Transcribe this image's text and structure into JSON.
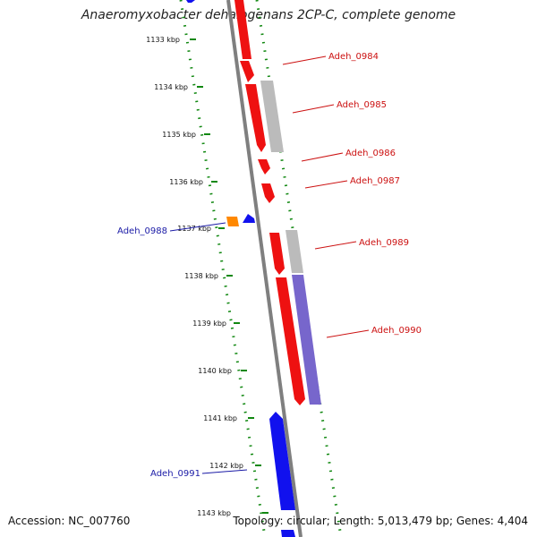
{
  "title": "Anaeromyxobacter dehalogenans 2CP-C, complete genome",
  "footer": {
    "accession": "Accession: NC_007760",
    "summary": "Topology: circular; Length: 5,013,479 bp; Genes: 4,404"
  },
  "colors": {
    "forward_gene": "#ee1111",
    "forward_gray": "#bbbbbb",
    "reverse_gene": "#1111ee",
    "purple_feature": "#7766cc",
    "orange_feature": "#ff8800",
    "backbone": "#888888",
    "dotted_track": "#118811",
    "label_forward": "#cc1111",
    "label_reverse": "#1a1aa6"
  },
  "ticks": [
    {
      "label": "1133 kbp"
    },
    {
      "label": "1134 kbp"
    },
    {
      "label": "1135 kbp"
    },
    {
      "label": "1136 kbp"
    },
    {
      "label": "1137 kbp"
    },
    {
      "label": "1138 kbp"
    },
    {
      "label": "1139 kbp"
    },
    {
      "label": "1140 kbp"
    },
    {
      "label": "1141 kbp"
    },
    {
      "label": "1142 kbp"
    },
    {
      "label": "1143 kbp"
    }
  ],
  "gene_labels": [
    {
      "name": "Adeh_0984",
      "strand": "forward"
    },
    {
      "name": "Adeh_0985",
      "strand": "forward"
    },
    {
      "name": "Adeh_0986",
      "strand": "forward"
    },
    {
      "name": "Adeh_0987",
      "strand": "forward"
    },
    {
      "name": "Adeh_0988",
      "strand": "reverse"
    },
    {
      "name": "Adeh_0989",
      "strand": "forward"
    },
    {
      "name": "Adeh_0990",
      "strand": "forward"
    },
    {
      "name": "Adeh_0991",
      "strand": "reverse"
    }
  ]
}
